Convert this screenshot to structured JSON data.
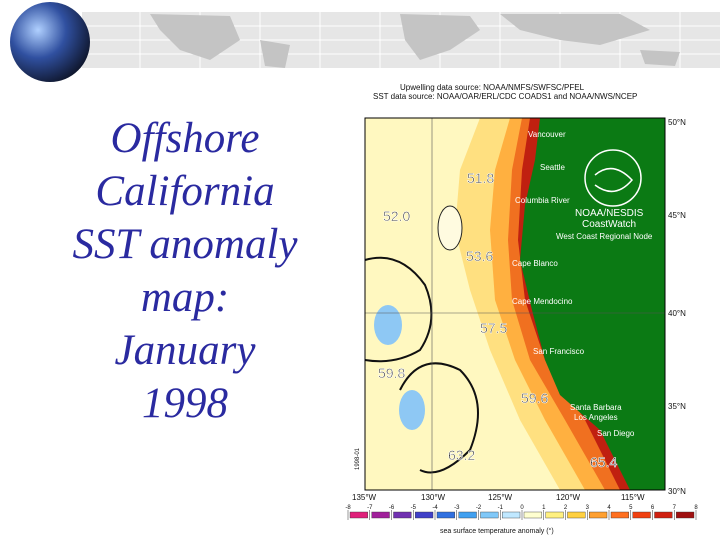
{
  "title_lines": [
    "Offshore",
    "California",
    "SST anomaly",
    "map:",
    "January",
    "1998"
  ],
  "sources": [
    "Upwelling data source: NOAA/NMFS/SWFSC/PFEL",
    "SST data source: NOAA/OAR/ERL/CDC COADS1 and NOAA/NWS/NCEP"
  ],
  "places": [
    "Vancouver",
    "Seattle",
    "Columbia River",
    "NOAA/NESDIS",
    "CoastWatch",
    "West Coast Regional Node",
    "Cape Blanco",
    "Cape Mendocino",
    "San Francisco",
    "Santa Barbara",
    "Los Angeles",
    "San Diego"
  ],
  "contour_labels": [
    "51.8",
    "52.0",
    "53.6",
    "57.5",
    "59.8",
    "59.6",
    "63.2",
    "65.4"
  ],
  "lat_labels": [
    "50°N",
    "45°N",
    "40°N",
    "35°N",
    "30°N"
  ],
  "lon_labels": [
    "135°W",
    "130°W",
    "125°W",
    "120°W",
    "115°W"
  ],
  "side_label": "1998-01",
  "legend": {
    "ticks": [
      -8,
      -7,
      -6,
      -5,
      -4,
      -3,
      -2,
      -1,
      0,
      1,
      2,
      3,
      4,
      5,
      6,
      7,
      8
    ],
    "colors": [
      "#e0207a",
      "#a0209a",
      "#7030b0",
      "#4040c8",
      "#3070e0",
      "#40a0f0",
      "#80c8f8",
      "#c0e8ff",
      "#ffffd0",
      "#fff080",
      "#ffd040",
      "#ffa030",
      "#ff7020",
      "#f04010",
      "#d02010",
      "#a01010"
    ],
    "caption": "sea surface temperature anomaly (°)"
  }
}
